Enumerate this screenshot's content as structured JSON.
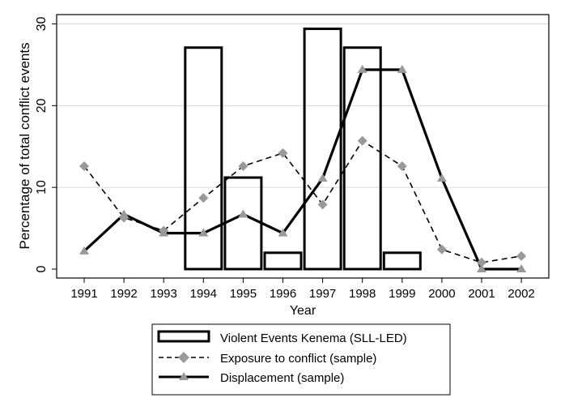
{
  "chart_data": {
    "type": "bar",
    "title": "",
    "xlabel": "Year",
    "ylabel": "Percentage of total conflict events",
    "ylim": [
      0,
      30
    ],
    "yticks": [
      0,
      10,
      20,
      30
    ],
    "grid": true,
    "legend_position": "bottom-center",
    "categories": [
      "1991",
      "1992",
      "1993",
      "1994",
      "1995",
      "1996",
      "1997",
      "1998",
      "1999",
      "2000",
      "2001",
      "2002"
    ],
    "series": [
      {
        "name": "Violent Events Kenema (SLL-LED)",
        "kind": "bar",
        "color": "#000000",
        "values": [
          0,
          0,
          0,
          27.1,
          11.2,
          2.0,
          29.4,
          27.1,
          2.0,
          0,
          0,
          0
        ]
      },
      {
        "name": "Exposure to conflict (sample)",
        "kind": "line",
        "style": "dashed",
        "marker": "diamond",
        "color": "#000000",
        "marker_color": "#999999",
        "values": [
          12.6,
          6.3,
          4.7,
          8.7,
          12.6,
          14.2,
          7.9,
          15.7,
          12.6,
          2.4,
          0.8,
          1.6
        ]
      },
      {
        "name": "Displacement (sample)",
        "kind": "line",
        "style": "solid",
        "marker": "triangle",
        "color": "#000000",
        "marker_color": "#999999",
        "values": [
          2.2,
          6.7,
          4.4,
          4.4,
          6.7,
          4.4,
          11.1,
          24.4,
          24.4,
          11.1,
          0,
          0
        ]
      }
    ]
  }
}
